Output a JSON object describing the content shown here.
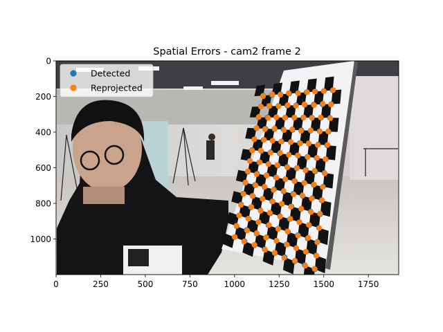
{
  "chart_data": {
    "type": "scatter",
    "title": "Spatial Errors - cam2 frame 2",
    "xlabel": "",
    "ylabel": "",
    "xlim": [
      0,
      1920
    ],
    "ylim": [
      1200,
      0
    ],
    "x_ticks": [
      0,
      250,
      500,
      750,
      1000,
      1250,
      1500,
      1750
    ],
    "y_ticks": [
      0,
      200,
      400,
      600,
      800,
      1000
    ],
    "x_tick_labels": [
      "0",
      "250",
      "500",
      "750",
      "1000",
      "1250",
      "1500",
      "1750"
    ],
    "y_tick_labels": [
      "0",
      "200",
      "400",
      "600",
      "800",
      "1000"
    ],
    "background": "camera frame: person holding a checkerboard calibration target in a lab",
    "legend": {
      "position": "top-left",
      "entries": [
        {
          "label": "Detected",
          "color": "#1f77b4"
        },
        {
          "label": "Reprojected",
          "color": "#ff7f0e"
        }
      ]
    },
    "grid": {
      "top_left": [
        1160,
        195
      ],
      "top_right": [
        1550,
        165
      ],
      "bottom_left": [
        1000,
        990
      ],
      "bottom_right": [
        1450,
        1170
      ],
      "cols": 9,
      "rows": 14,
      "units": "image pixels"
    },
    "series": [
      {
        "name": "Detected",
        "color": "#1f77b4",
        "marker": "o"
      },
      {
        "name": "Reprojected",
        "color": "#ff7f0e",
        "marker": "o"
      }
    ]
  }
}
